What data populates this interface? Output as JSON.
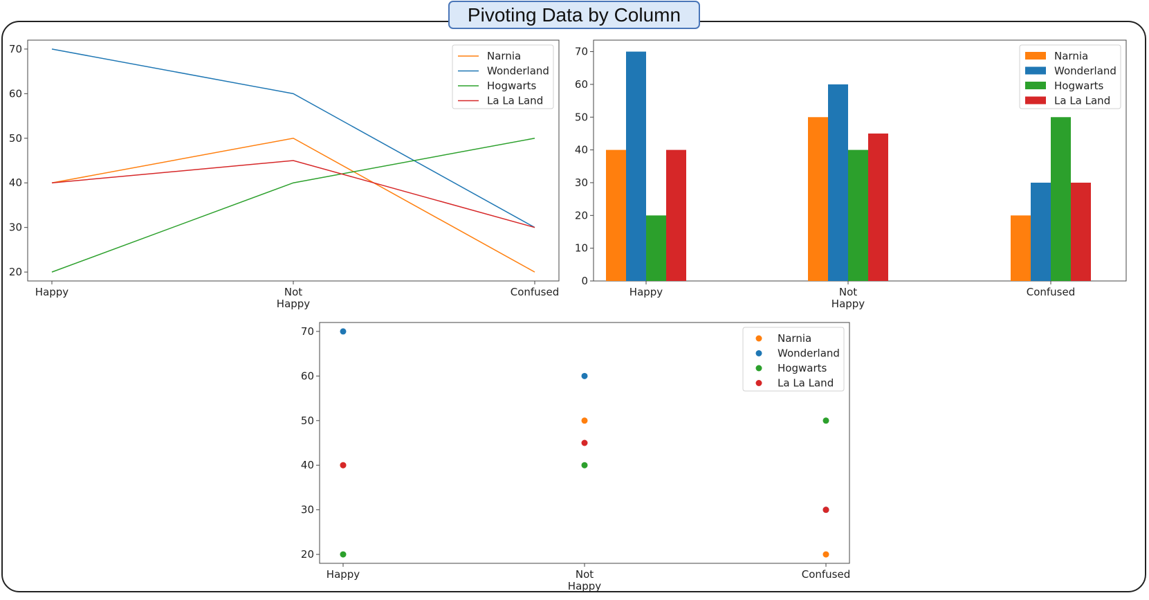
{
  "title": "Pivoting Data by Column",
  "chart_data": [
    {
      "type": "line",
      "categories": [
        "Happy",
        "Not\nHappy",
        "Confused"
      ],
      "ylim": [
        18,
        72
      ],
      "yticks": [
        20,
        30,
        40,
        50,
        60,
        70
      ],
      "legend_position": "top-right",
      "series": [
        {
          "name": "Narnia",
          "color": "#ff7f0e",
          "values": [
            40,
            50,
            20
          ]
        },
        {
          "name": "Wonderland",
          "color": "#1f77b4",
          "values": [
            70,
            60,
            30
          ]
        },
        {
          "name": "Hogwarts",
          "color": "#2ca02c",
          "values": [
            20,
            40,
            50
          ]
        },
        {
          "name": "La La Land",
          "color": "#d62728",
          "values": [
            40,
            45,
            30
          ]
        }
      ]
    },
    {
      "type": "bar",
      "categories": [
        "Happy",
        "Not\nHappy",
        "Confused"
      ],
      "ylim": [
        0,
        73.5
      ],
      "yticks": [
        0,
        10,
        20,
        30,
        40,
        50,
        60,
        70
      ],
      "legend_position": "top-right",
      "series": [
        {
          "name": "Narnia",
          "color": "#ff7f0e",
          "values": [
            40,
            50,
            20
          ]
        },
        {
          "name": "Wonderland",
          "color": "#1f77b4",
          "values": [
            70,
            60,
            30
          ]
        },
        {
          "name": "Hogwarts",
          "color": "#2ca02c",
          "values": [
            20,
            40,
            50
          ]
        },
        {
          "name": "La La Land",
          "color": "#d62728",
          "values": [
            40,
            45,
            30
          ]
        }
      ]
    },
    {
      "type": "scatter",
      "categories": [
        "Happy",
        "Not\nHappy",
        "Confused"
      ],
      "ylim": [
        18,
        72
      ],
      "yticks": [
        20,
        30,
        40,
        50,
        60,
        70
      ],
      "legend_position": "top-right",
      "series": [
        {
          "name": "Narnia",
          "color": "#ff7f0e",
          "values": [
            40,
            50,
            20
          ]
        },
        {
          "name": "Wonderland",
          "color": "#1f77b4",
          "values": [
            70,
            60,
            30
          ]
        },
        {
          "name": "Hogwarts",
          "color": "#2ca02c",
          "values": [
            20,
            40,
            50
          ]
        },
        {
          "name": "La La Land",
          "color": "#d62728",
          "values": [
            40,
            45,
            30
          ]
        }
      ]
    }
  ]
}
